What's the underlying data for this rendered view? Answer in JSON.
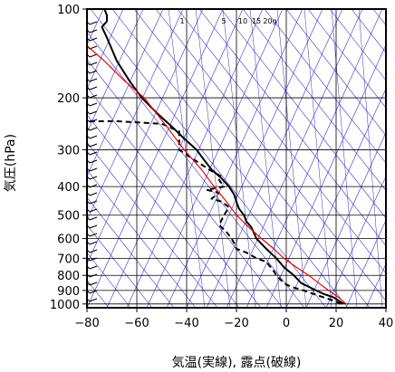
{
  "chart_data": {
    "type": "line",
    "xlabel": "気温(実線), 露点(破線)",
    "ylabel": "気圧(hPa)",
    "xlim": [
      -80,
      40
    ],
    "ylim": [
      1030,
      100
    ],
    "y_scale": "log",
    "x_ticks": [
      -80,
      -60,
      -40,
      -20,
      0,
      20,
      40
    ],
    "x_tick_labels": [
      "−80",
      "−60",
      "−40",
      "−20",
      "0",
      "20",
      "40"
    ],
    "y_ticks": [
      100,
      200,
      300,
      400,
      500,
      600,
      700,
      800,
      900,
      1000
    ],
    "y_tick_labels": [
      "100",
      "200",
      "300",
      "400",
      "500",
      "600",
      "700",
      "800",
      "900",
      "1000"
    ],
    "mixing_ratio_labels": [
      "1",
      "5",
      "10",
      "15",
      "20g"
    ],
    "mixing_ratio_values": [
      1,
      5,
      10,
      15,
      20
    ],
    "colors": {
      "temperature": "#000000",
      "dewpoint": "#000000",
      "parcel": "#ee0000",
      "background_lines": "#3333cc",
      "grid": "#000000"
    },
    "series": [
      {
        "style": "solid",
        "points": [
          [
            23,
            1000
          ],
          [
            21,
            975
          ],
          [
            19,
            950
          ],
          [
            15,
            925
          ],
          [
            12,
            900
          ],
          [
            9,
            875
          ],
          [
            6,
            850
          ],
          [
            3,
            800
          ],
          [
            1,
            775
          ],
          [
            -1,
            750
          ],
          [
            -4,
            700
          ],
          [
            -6,
            675
          ],
          [
            -8,
            650
          ],
          [
            -12,
            600
          ],
          [
            -14,
            550
          ],
          [
            -16,
            525
          ],
          [
            -17,
            500
          ],
          [
            -19,
            475
          ],
          [
            -20,
            450
          ],
          [
            -21,
            425
          ],
          [
            -23,
            400
          ],
          [
            -26,
            375
          ],
          [
            -30,
            350
          ],
          [
            -33,
            325
          ],
          [
            -36,
            300
          ],
          [
            -41,
            275
          ],
          [
            -46,
            250
          ],
          [
            -52,
            225
          ],
          [
            -58,
            200
          ],
          [
            -63,
            175
          ],
          [
            -68,
            150
          ],
          [
            -72,
            125
          ],
          [
            -74,
            115
          ],
          [
            -72,
            110
          ],
          [
            -72,
            105
          ],
          [
            -73,
            100
          ]
        ]
      },
      {
        "style": "dashed",
        "points": [
          [
            22,
            1000
          ],
          [
            19,
            975
          ],
          [
            15,
            950
          ],
          [
            11,
            925
          ],
          [
            7,
            900
          ],
          [
            2,
            875
          ],
          [
            -1,
            850
          ],
          [
            -4,
            800
          ],
          [
            -5,
            775
          ],
          [
            -8,
            720
          ],
          [
            -12,
            700
          ],
          [
            -16,
            670
          ],
          [
            -20,
            650
          ],
          [
            -21,
            620
          ],
          [
            -22,
            600
          ],
          [
            -24,
            570
          ],
          [
            -27,
            540
          ],
          [
            -25,
            500
          ],
          [
            -23,
            470
          ],
          [
            -26,
            450
          ],
          [
            -30,
            440
          ],
          [
            -27,
            420
          ],
          [
            -32,
            410
          ],
          [
            -25,
            400
          ],
          [
            -27,
            380
          ],
          [
            -26,
            370
          ],
          [
            -31,
            350
          ],
          [
            -38,
            320
          ],
          [
            -43,
            300
          ],
          [
            -43,
            260
          ],
          [
            -50,
            245
          ],
          [
            -68,
            240
          ],
          [
            -80,
            240
          ]
        ]
      },
      {
        "style": "solid-red",
        "points": [
          [
            24,
            1000
          ],
          [
            21,
            950
          ],
          [
            17,
            900
          ],
          [
            13,
            850
          ],
          [
            9,
            800
          ],
          [
            4,
            750
          ],
          [
            -1,
            700
          ],
          [
            -5,
            650
          ],
          [
            -10,
            600
          ],
          [
            -15,
            550
          ],
          [
            -20,
            500
          ],
          [
            -24,
            450
          ],
          [
            -29,
            400
          ],
          [
            -34,
            350
          ],
          [
            -41,
            300
          ],
          [
            -48,
            250
          ],
          [
            -57,
            200
          ],
          [
            -65,
            175
          ],
          [
            -73,
            150
          ],
          [
            -80,
            133
          ]
        ]
      }
    ],
    "wind_barbs_column_x": -76
  }
}
